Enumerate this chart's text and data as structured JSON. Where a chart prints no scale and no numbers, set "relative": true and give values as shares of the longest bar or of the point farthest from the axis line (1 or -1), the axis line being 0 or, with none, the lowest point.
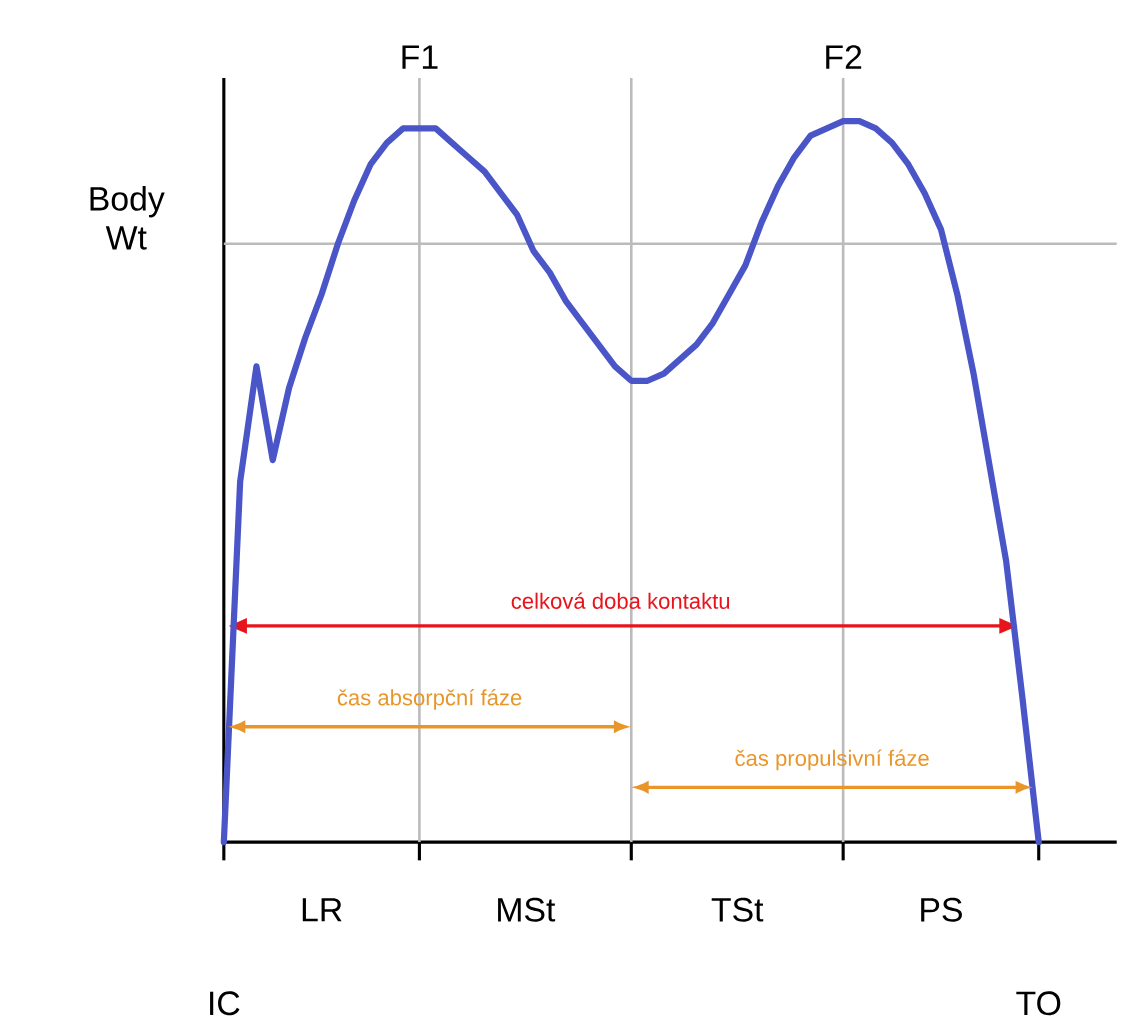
{
  "chart_data": {
    "type": "line",
    "relative": true,
    "grid": "x",
    "categories": [
      null,
      null,
      null,
      null,
      null,
      null,
      null,
      null,
      null,
      null,
      null,
      null,
      null,
      null,
      null,
      null,
      null,
      null,
      null,
      null,
      null,
      null,
      null,
      null,
      null,
      null,
      null,
      null,
      null,
      null,
      null,
      null,
      null,
      null,
      null,
      null,
      null,
      null,
      null,
      null,
      null,
      null,
      null,
      null,
      null,
      null,
      null,
      null,
      null,
      null,
      null
    ],
    "series": [
      {
        "color": "#4a55c8",
        "values": [
          0,
          0.5,
          0.66,
          0.53,
          0.63,
          0.7,
          0.76,
          0.83,
          0.89,
          0.94,
          0.97,
          0.99,
          0.99,
          0.99,
          0.97,
          0.95,
          0.93,
          0.9,
          0.87,
          0.82,
          0.79,
          0.75,
          0.72,
          0.69,
          0.66,
          0.64,
          0.64,
          0.65,
          0.67,
          0.69,
          0.72,
          0.76,
          0.8,
          0.86,
          0.91,
          0.95,
          0.98,
          0.99,
          1,
          1,
          0.99,
          0.97,
          0.94,
          0.9,
          0.85,
          0.76,
          0.65,
          0.52,
          0.39,
          0.2,
          0
        ]
      }
    ],
    "ref_lines": [
      {
        "axis": "y",
        "value": 0.83,
        "label": "Body Wt",
        "color": "#bbbbbb"
      },
      {
        "axis": "y",
        "value": 0.3,
        "label": "celková doba kontaktu",
        "color": "#e8141c"
      }
    ],
    "annotations": [
      "LR",
      "MSt",
      "TSt",
      "PS",
      "IC",
      "TO",
      "čas absorpční fáze",
      "čas propulsivní fáze",
      "F1",
      "F2"
    ]
  }
}
